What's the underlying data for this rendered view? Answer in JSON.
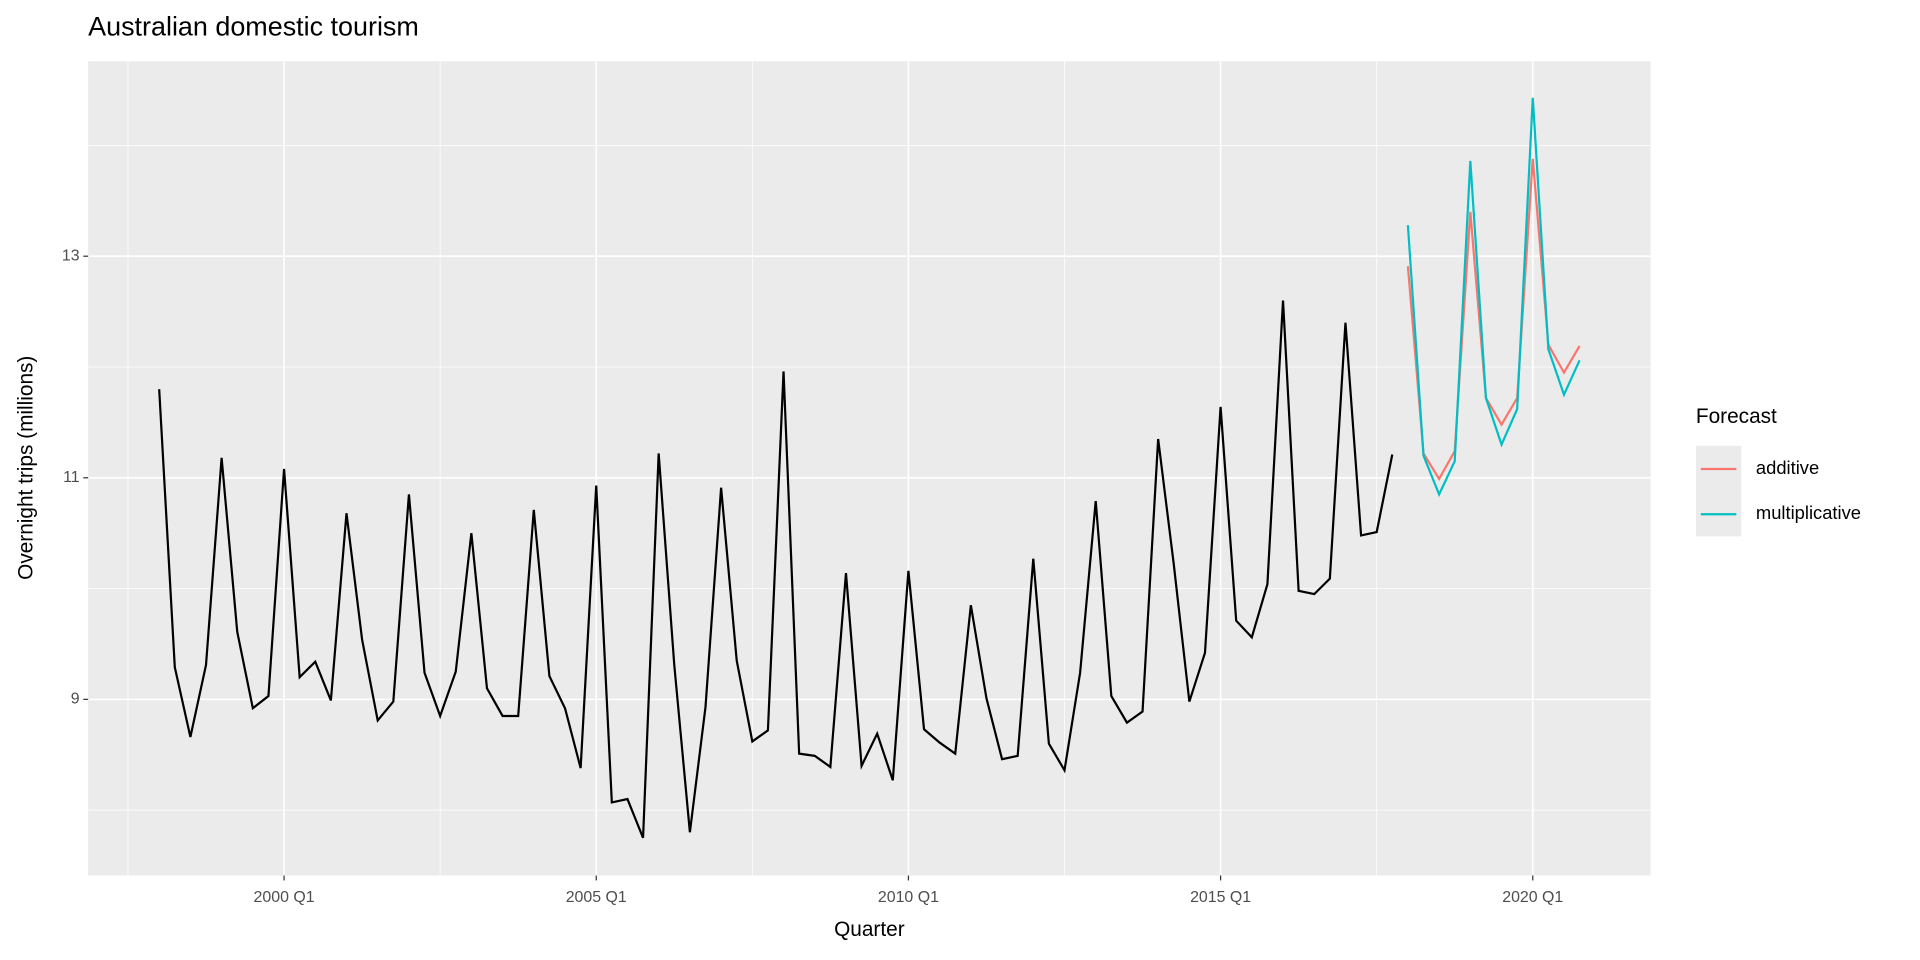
{
  "chart_data": {
    "type": "line",
    "title": "Australian domestic tourism",
    "x_label": "Quarter",
    "y_label": "Overnight trips (millions)",
    "legend_title": "Forecast",
    "legend_position": "right",
    "grid": true,
    "x": [
      "1998 Q1",
      "1998 Q2",
      "1998 Q3",
      "1998 Q4",
      "1999 Q1",
      "1999 Q2",
      "1999 Q3",
      "1999 Q4",
      "2000 Q1",
      "2000 Q2",
      "2000 Q3",
      "2000 Q4",
      "2001 Q1",
      "2001 Q2",
      "2001 Q3",
      "2001 Q4",
      "2002 Q1",
      "2002 Q2",
      "2002 Q3",
      "2002 Q4",
      "2003 Q1",
      "2003 Q2",
      "2003 Q3",
      "2003 Q4",
      "2004 Q1",
      "2004 Q2",
      "2004 Q3",
      "2004 Q4",
      "2005 Q1",
      "2005 Q2",
      "2005 Q3",
      "2005 Q4",
      "2006 Q1",
      "2006 Q2",
      "2006 Q3",
      "2006 Q4",
      "2007 Q1",
      "2007 Q2",
      "2007 Q3",
      "2007 Q4",
      "2008 Q1",
      "2008 Q2",
      "2008 Q3",
      "2008 Q4",
      "2009 Q1",
      "2009 Q2",
      "2009 Q3",
      "2009 Q4",
      "2010 Q1",
      "2010 Q2",
      "2010 Q3",
      "2010 Q4",
      "2011 Q1",
      "2011 Q2",
      "2011 Q3",
      "2011 Q4",
      "2012 Q1",
      "2012 Q2",
      "2012 Q3",
      "2012 Q4",
      "2013 Q1",
      "2013 Q2",
      "2013 Q3",
      "2013 Q4",
      "2014 Q1",
      "2014 Q2",
      "2014 Q3",
      "2014 Q4",
      "2015 Q1",
      "2015 Q2",
      "2015 Q3",
      "2015 Q4",
      "2016 Q1",
      "2016 Q2",
      "2016 Q3",
      "2016 Q4",
      "2017 Q1",
      "2017 Q2",
      "2017 Q3",
      "2017 Q4",
      "2018 Q1",
      "2018 Q2",
      "2018 Q3",
      "2018 Q4",
      "2019 Q1",
      "2019 Q2",
      "2019 Q3",
      "2019 Q4",
      "2020 Q1",
      "2020 Q2",
      "2020 Q3",
      "2020 Q4"
    ],
    "series": [
      {
        "color": "#000000",
        "values": [
          11.8,
          9.29,
          8.66,
          9.31,
          11.18,
          9.61,
          8.92,
          9.03,
          11.08,
          9.2,
          9.34,
          8.99,
          10.68,
          9.54,
          8.81,
          8.98,
          10.85,
          9.24,
          8.85,
          9.25,
          10.5,
          9.1,
          8.85,
          8.85,
          10.71,
          9.21,
          8.92,
          8.38,
          10.93,
          8.07,
          8.1,
          7.75,
          11.22,
          9.31,
          7.8,
          8.93,
          10.91,
          9.35,
          8.62,
          8.72,
          11.96,
          8.51,
          8.49,
          8.39,
          10.14,
          8.4,
          8.69,
          8.27,
          10.16,
          8.73,
          8.61,
          8.51,
          9.85,
          9.01,
          8.46,
          8.49,
          10.27,
          8.6,
          8.36,
          9.24,
          10.79,
          9.03,
          8.79,
          8.89,
          11.35,
          10.22,
          8.98,
          9.42,
          11.64,
          9.71,
          9.56,
          10.04,
          12.6,
          9.98,
          9.95,
          10.09,
          12.4,
          10.48,
          10.51,
          11.21,
          null,
          null,
          null,
          null,
          null,
          null,
          null,
          null,
          null,
          null,
          null,
          null
        ]
      },
      {
        "name": "additive",
        "color": "#F8766D",
        "values": [
          null,
          null,
          null,
          null,
          null,
          null,
          null,
          null,
          null,
          null,
          null,
          null,
          null,
          null,
          null,
          null,
          null,
          null,
          null,
          null,
          null,
          null,
          null,
          null,
          null,
          null,
          null,
          null,
          null,
          null,
          null,
          null,
          null,
          null,
          null,
          null,
          null,
          null,
          null,
          null,
          null,
          null,
          null,
          null,
          null,
          null,
          null,
          null,
          null,
          null,
          null,
          null,
          null,
          null,
          null,
          null,
          null,
          null,
          null,
          null,
          null,
          null,
          null,
          null,
          null,
          null,
          null,
          null,
          null,
          null,
          null,
          null,
          null,
          null,
          null,
          null,
          null,
          null,
          null,
          null,
          12.91,
          11.22,
          10.99,
          11.24,
          13.4,
          11.72,
          11.48,
          11.72,
          13.88,
          12.2,
          11.95,
          12.19
        ]
      },
      {
        "name": "multiplicative",
        "color": "#00BFC4",
        "values": [
          null,
          null,
          null,
          null,
          null,
          null,
          null,
          null,
          null,
          null,
          null,
          null,
          null,
          null,
          null,
          null,
          null,
          null,
          null,
          null,
          null,
          null,
          null,
          null,
          null,
          null,
          null,
          null,
          null,
          null,
          null,
          null,
          null,
          null,
          null,
          null,
          null,
          null,
          null,
          null,
          null,
          null,
          null,
          null,
          null,
          null,
          null,
          null,
          null,
          null,
          null,
          null,
          null,
          null,
          null,
          null,
          null,
          null,
          null,
          null,
          null,
          null,
          null,
          null,
          null,
          null,
          null,
          null,
          null,
          null,
          null,
          null,
          null,
          null,
          null,
          null,
          null,
          null,
          null,
          null,
          13.28,
          11.2,
          10.85,
          11.15,
          13.86,
          11.72,
          11.3,
          11.62,
          14.43,
          12.16,
          11.75,
          12.06
        ]
      }
    ],
    "xticks": [
      "2000 Q1",
      "2005 Q1",
      "2010 Q1",
      "2015 Q1",
      "2020 Q1"
    ],
    "ylim": [
      7.41,
      14.76
    ],
    "yticks": [
      9,
      11,
      13
    ]
  }
}
